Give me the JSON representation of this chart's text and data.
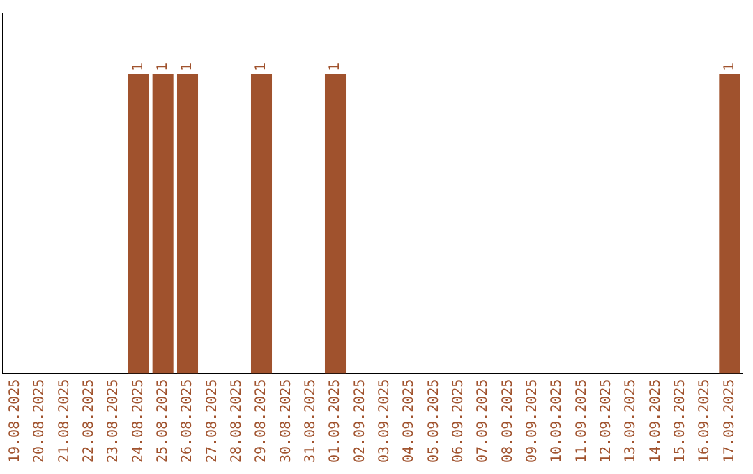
{
  "chart_data": {
    "type": "bar",
    "categories": [
      "19.08.2025",
      "20.08.2025",
      "21.08.2025",
      "22.08.2025",
      "23.08.2025",
      "24.08.2025",
      "25.08.2025",
      "26.08.2025",
      "27.08.2025",
      "28.08.2025",
      "29.08.2025",
      "30.08.2025",
      "31.08.2025",
      "01.09.2025",
      "02.09.2025",
      "03.09.2025",
      "04.09.2025",
      "05.09.2025",
      "06.09.2025",
      "07.09.2025",
      "08.09.2025",
      "09.09.2025",
      "10.09.2025",
      "11.09.2025",
      "12.09.2025",
      "13.09.2025",
      "14.09.2025",
      "15.09.2025",
      "16.09.2025",
      "17.09.2025"
    ],
    "values": [
      0,
      0,
      0,
      0,
      0,
      1,
      1,
      1,
      0,
      0,
      1,
      0,
      0,
      1,
      0,
      0,
      0,
      0,
      0,
      0,
      0,
      0,
      0,
      0,
      0,
      0,
      0,
      0,
      0,
      1
    ],
    "value_labels": [
      null,
      null,
      null,
      null,
      null,
      "1",
      "1",
      "1",
      null,
      null,
      "1",
      null,
      null,
      "1",
      null,
      null,
      null,
      null,
      null,
      null,
      null,
      null,
      null,
      null,
      null,
      null,
      null,
      null,
      null,
      "1"
    ],
    "color": "#a0522d",
    "grid": false,
    "legend": false,
    "tick_labels": "x"
  }
}
